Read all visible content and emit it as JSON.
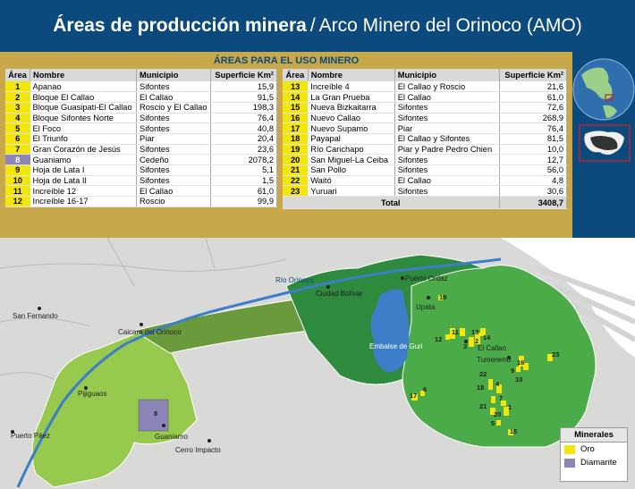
{
  "title": {
    "bold": "Áreas de producción minera",
    "sep": "/",
    "rest": "Arco Minero del Orinoco (AMO)"
  },
  "panel_title": "ÁREAS PARA EL USO MINERO",
  "headers": {
    "area": "Área",
    "nombre": "Nombre",
    "municipio": "Municipio",
    "superficie": "Superficie Km²"
  },
  "rows_left": [
    {
      "area": "1",
      "nombre": "Apanao",
      "municipio": "Sifontes",
      "sup": "15,9",
      "mineral": "oro"
    },
    {
      "area": "2",
      "nombre": "Bloque El Callao",
      "municipio": "El Callao",
      "sup": "91,5",
      "mineral": "oro"
    },
    {
      "area": "3",
      "nombre": "Bloque Guasipati-El Callao",
      "municipio": "Roscio y El Callao",
      "sup": "198,3",
      "mineral": "oro"
    },
    {
      "area": "4",
      "nombre": "Bloque Sifontes Norte",
      "municipio": "Sifontes",
      "sup": "76,4",
      "mineral": "oro"
    },
    {
      "area": "5",
      "nombre": "El Foco",
      "municipio": "Sifontes",
      "sup": "40,8",
      "mineral": "oro"
    },
    {
      "area": "6",
      "nombre": "El Triunfo",
      "municipio": "Piar",
      "sup": "20,4",
      "mineral": "oro"
    },
    {
      "area": "7",
      "nombre": "Gran Corazón de Jesús",
      "municipio": "Sifontes",
      "sup": "23,6",
      "mineral": "oro"
    },
    {
      "area": "8",
      "nombre": "Guaniamo",
      "municipio": "Cedeño",
      "sup": "2078,2",
      "mineral": "diamante"
    },
    {
      "area": "9",
      "nombre": "Hoja de Lata I",
      "municipio": "Sifontes",
      "sup": "5,1",
      "mineral": "oro"
    },
    {
      "area": "10",
      "nombre": "Hoja de Lata II",
      "municipio": "Sifontes",
      "sup": "1,5",
      "mineral": "oro"
    },
    {
      "area": "11",
      "nombre": "Increíble 12",
      "municipio": "El Callao",
      "sup": "61,0",
      "mineral": "oro"
    },
    {
      "area": "12",
      "nombre": "Increíble 16-17",
      "municipio": "Roscio",
      "sup": "99,9",
      "mineral": "oro"
    }
  ],
  "rows_right": [
    {
      "area": "13",
      "nombre": "Increíble 4",
      "municipio": "El Callao y Roscio",
      "sup": "21,6",
      "mineral": "oro"
    },
    {
      "area": "14",
      "nombre": "La Gran Prueba",
      "municipio": "El Callao",
      "sup": "61,0",
      "mineral": "oro"
    },
    {
      "area": "15",
      "nombre": "Nueva Bizkaitarra",
      "municipio": "Sifontes",
      "sup": "72,6",
      "mineral": "oro"
    },
    {
      "area": "16",
      "nombre": "Nuevo Callao",
      "municipio": "Sifontes",
      "sup": "268,9",
      "mineral": "oro"
    },
    {
      "area": "17",
      "nombre": "Nuevo Supamo",
      "municipio": "Piar",
      "sup": "76,4",
      "mineral": "oro"
    },
    {
      "area": "18",
      "nombre": "Payapal",
      "municipio": "El Callao y Sifontes",
      "sup": "81,5",
      "mineral": "oro"
    },
    {
      "area": "19",
      "nombre": "Río Carichapo",
      "municipio": "Piar y Padre Pedro Chien",
      "sup": "10,0",
      "mineral": "oro"
    },
    {
      "area": "20",
      "nombre": "San Miguel-La Ceiba",
      "municipio": "Sifontes",
      "sup": "12,7",
      "mineral": "oro"
    },
    {
      "area": "21",
      "nombre": "San Pollo",
      "municipio": "Sifontes",
      "sup": "56,0",
      "mineral": "oro"
    },
    {
      "area": "22",
      "nombre": "Waitó",
      "municipio": "El Callao",
      "sup": "4,8",
      "mineral": "oro"
    },
    {
      "area": "23",
      "nombre": "Yuruari",
      "municipio": "Sifontes",
      "sup": "30,6",
      "mineral": "oro"
    }
  ],
  "total": {
    "label": "Total",
    "value": "3408,7"
  },
  "map_labels": {
    "rio_orinoco": "Río Orinoco",
    "ciudad_bolivar": "Ciudad Bolívar",
    "puerto_ordaz": "Puerto Ordaz",
    "upata": "Upata",
    "el_callao": "El Callao",
    "tumeremo": "Tumeremo",
    "embalse": "Embalse de Guri",
    "san_fernando": "San Fernando",
    "caicara": "Caicara del Orinoco",
    "pijiguaos": "Pijiguaos",
    "puerto_paez": "Puerto Páez",
    "guaniamo": "Guaniamo",
    "cerro_impacto": "Cerro Impacto"
  },
  "map_area_numbers": [
    "1",
    "2",
    "3",
    "4",
    "5",
    "6",
    "7",
    "8",
    "9",
    "10",
    "11",
    "12",
    "13",
    "14",
    "15",
    "16",
    "17",
    "18",
    "19",
    "20",
    "21",
    "22",
    "23"
  ],
  "legend": {
    "title": "Minerales",
    "oro": "Oro",
    "diamante": "Diamante"
  },
  "colors": {
    "header": "#0c4a7e",
    "panel": "#c7a84a",
    "oro": "#f3e60f",
    "diamante": "#8c86b8",
    "dark_green": "#2e8a3c",
    "mid_green": "#4bab48",
    "light_green": "#98c94f",
    "olive": "#6a9a3c",
    "water": "#3c7fc8"
  }
}
